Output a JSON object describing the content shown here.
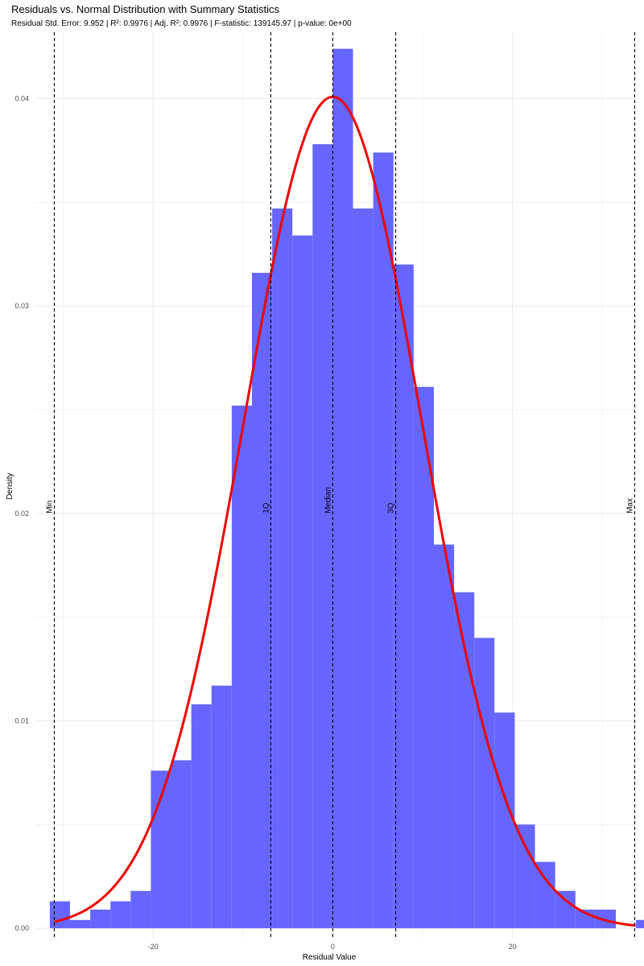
{
  "chart_data": {
    "type": "bar",
    "title": "Residuals vs. Normal Distribution with Summary Statistics",
    "subtitle": "Residual Std. Error: 9.952 | R²: 0.9976 | Adj. R²: 0.9976 | F-statistic: 139145.97 | p-value: 0e+00",
    "xlabel": "Residual Value",
    "ylabel": "Density",
    "xlim": [
      -33.1,
      34.1
    ],
    "ylim": [
      -0.0005,
      0.0432
    ],
    "x_ticks": [
      -20,
      0,
      20
    ],
    "x_tick_labels": [
      "-20",
      "0",
      "20"
    ],
    "y_ticks": [
      0.0,
      0.01,
      0.02,
      0.03,
      0.04
    ],
    "y_tick_labels": [
      "0.00",
      "0.01",
      "0.02",
      "0.03",
      "0.04"
    ],
    "grid": true,
    "colors": {
      "bars": "#6666ff",
      "curve": "#ee0000",
      "grid": "#ebebeb",
      "reference_lines": "#000000"
    },
    "histogram": {
      "bin_width": 2.25,
      "bins": [
        {
          "x0": -31.5,
          "x1": -29.25,
          "density": 0.0013
        },
        {
          "x0": -29.25,
          "x1": -27.0,
          "density": 0.0004
        },
        {
          "x0": -27.0,
          "x1": -24.75,
          "density": 0.0009
        },
        {
          "x0": -24.75,
          "x1": -22.5,
          "density": 0.0013
        },
        {
          "x0": -22.5,
          "x1": -20.25,
          "density": 0.0018
        },
        {
          "x0": -20.25,
          "x1": -18.0,
          "density": 0.0076
        },
        {
          "x0": -18.0,
          "x1": -15.75,
          "density": 0.0081
        },
        {
          "x0": -15.75,
          "x1": -13.5,
          "density": 0.0108
        },
        {
          "x0": -13.5,
          "x1": -11.25,
          "density": 0.0117
        },
        {
          "x0": -11.25,
          "x1": -9.0,
          "density": 0.0252
        },
        {
          "x0": -9.0,
          "x1": -6.75,
          "density": 0.0316
        },
        {
          "x0": -6.75,
          "x1": -4.5,
          "density": 0.0347
        },
        {
          "x0": -4.5,
          "x1": -2.25,
          "density": 0.0334
        },
        {
          "x0": -2.25,
          "x1": 0.0,
          "density": 0.0378
        },
        {
          "x0": 0.0,
          "x1": 2.25,
          "density": 0.0424
        },
        {
          "x0": 2.25,
          "x1": 4.5,
          "density": 0.0347
        },
        {
          "x0": 4.5,
          "x1": 6.75,
          "density": 0.0374
        },
        {
          "x0": 6.75,
          "x1": 9.0,
          "density": 0.032
        },
        {
          "x0": 9.0,
          "x1": 11.25,
          "density": 0.0261
        },
        {
          "x0": 11.25,
          "x1": 13.5,
          "density": 0.0185
        },
        {
          "x0": 13.5,
          "x1": 15.75,
          "density": 0.0162
        },
        {
          "x0": 15.75,
          "x1": 18.0,
          "density": 0.014
        },
        {
          "x0": 18.0,
          "x1": 20.25,
          "density": 0.0104
        },
        {
          "x0": 20.25,
          "x1": 22.5,
          "density": 0.005
        },
        {
          "x0": 22.5,
          "x1": 24.75,
          "density": 0.0032
        },
        {
          "x0": 24.75,
          "x1": 27.0,
          "density": 0.0018
        },
        {
          "x0": 27.0,
          "x1": 29.25,
          "density": 0.0009
        },
        {
          "x0": 29.25,
          "x1": 31.5,
          "density": 0.0009
        },
        {
          "x0": 31.5,
          "x1": 33.75,
          "density": 0.0
        },
        {
          "x0": 33.75,
          "x1": 36.0,
          "density": 0.0004
        }
      ]
    },
    "normal_curve": {
      "mean": 0.0,
      "sd": 9.952,
      "x_from": -31.0,
      "x_to": 33.7
    },
    "summary_lines": [
      {
        "label": "Min",
        "x": -31.0
      },
      {
        "label": "1Q",
        "x": -6.9
      },
      {
        "label": "Median",
        "x": 0.0
      },
      {
        "label": "3Q",
        "x": 7.0
      },
      {
        "label": "Max",
        "x": 33.6
      }
    ],
    "summary_label_y": 0.02
  }
}
